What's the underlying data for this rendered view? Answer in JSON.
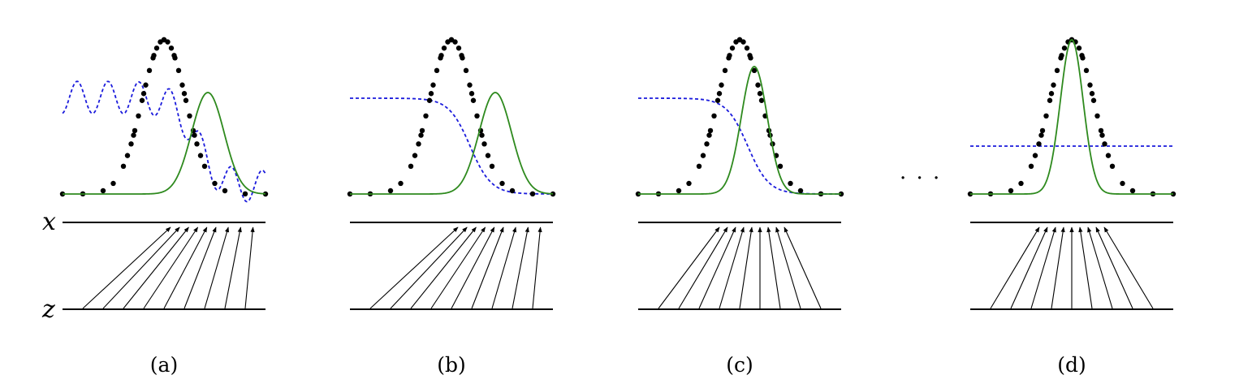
{
  "axis_labels": {
    "x": "x",
    "z": "z"
  },
  "ellipsis": "· · ·",
  "colors": {
    "data_points": "#000000",
    "generator_curve": "#2e8a1e",
    "discriminator_curve": "#1b1bdc",
    "axis_line": "#000000",
    "arrow": "#000000"
  },
  "panels": [
    {
      "caption": "(a)",
      "discriminator": "wavy",
      "generator_mean_offset": 54,
      "generator_sd": 20,
      "generator_peak": 125,
      "mapping": "skewed"
    },
    {
      "caption": "(b)",
      "discriminator": "sigmoid",
      "generator_mean_offset": 54,
      "generator_sd": 20,
      "generator_peak": 125,
      "mapping": "skewed"
    },
    {
      "caption": "(c)",
      "discriminator": "sigmoid",
      "generator_mean_offset": 18,
      "generator_sd": 16,
      "generator_peak": 157,
      "mapping": "converging"
    },
    {
      "caption": "(d)",
      "discriminator": "flat",
      "generator_mean_offset": 0,
      "generator_sd": 14,
      "generator_peak": 190,
      "mapping": "matched"
    }
  ]
}
